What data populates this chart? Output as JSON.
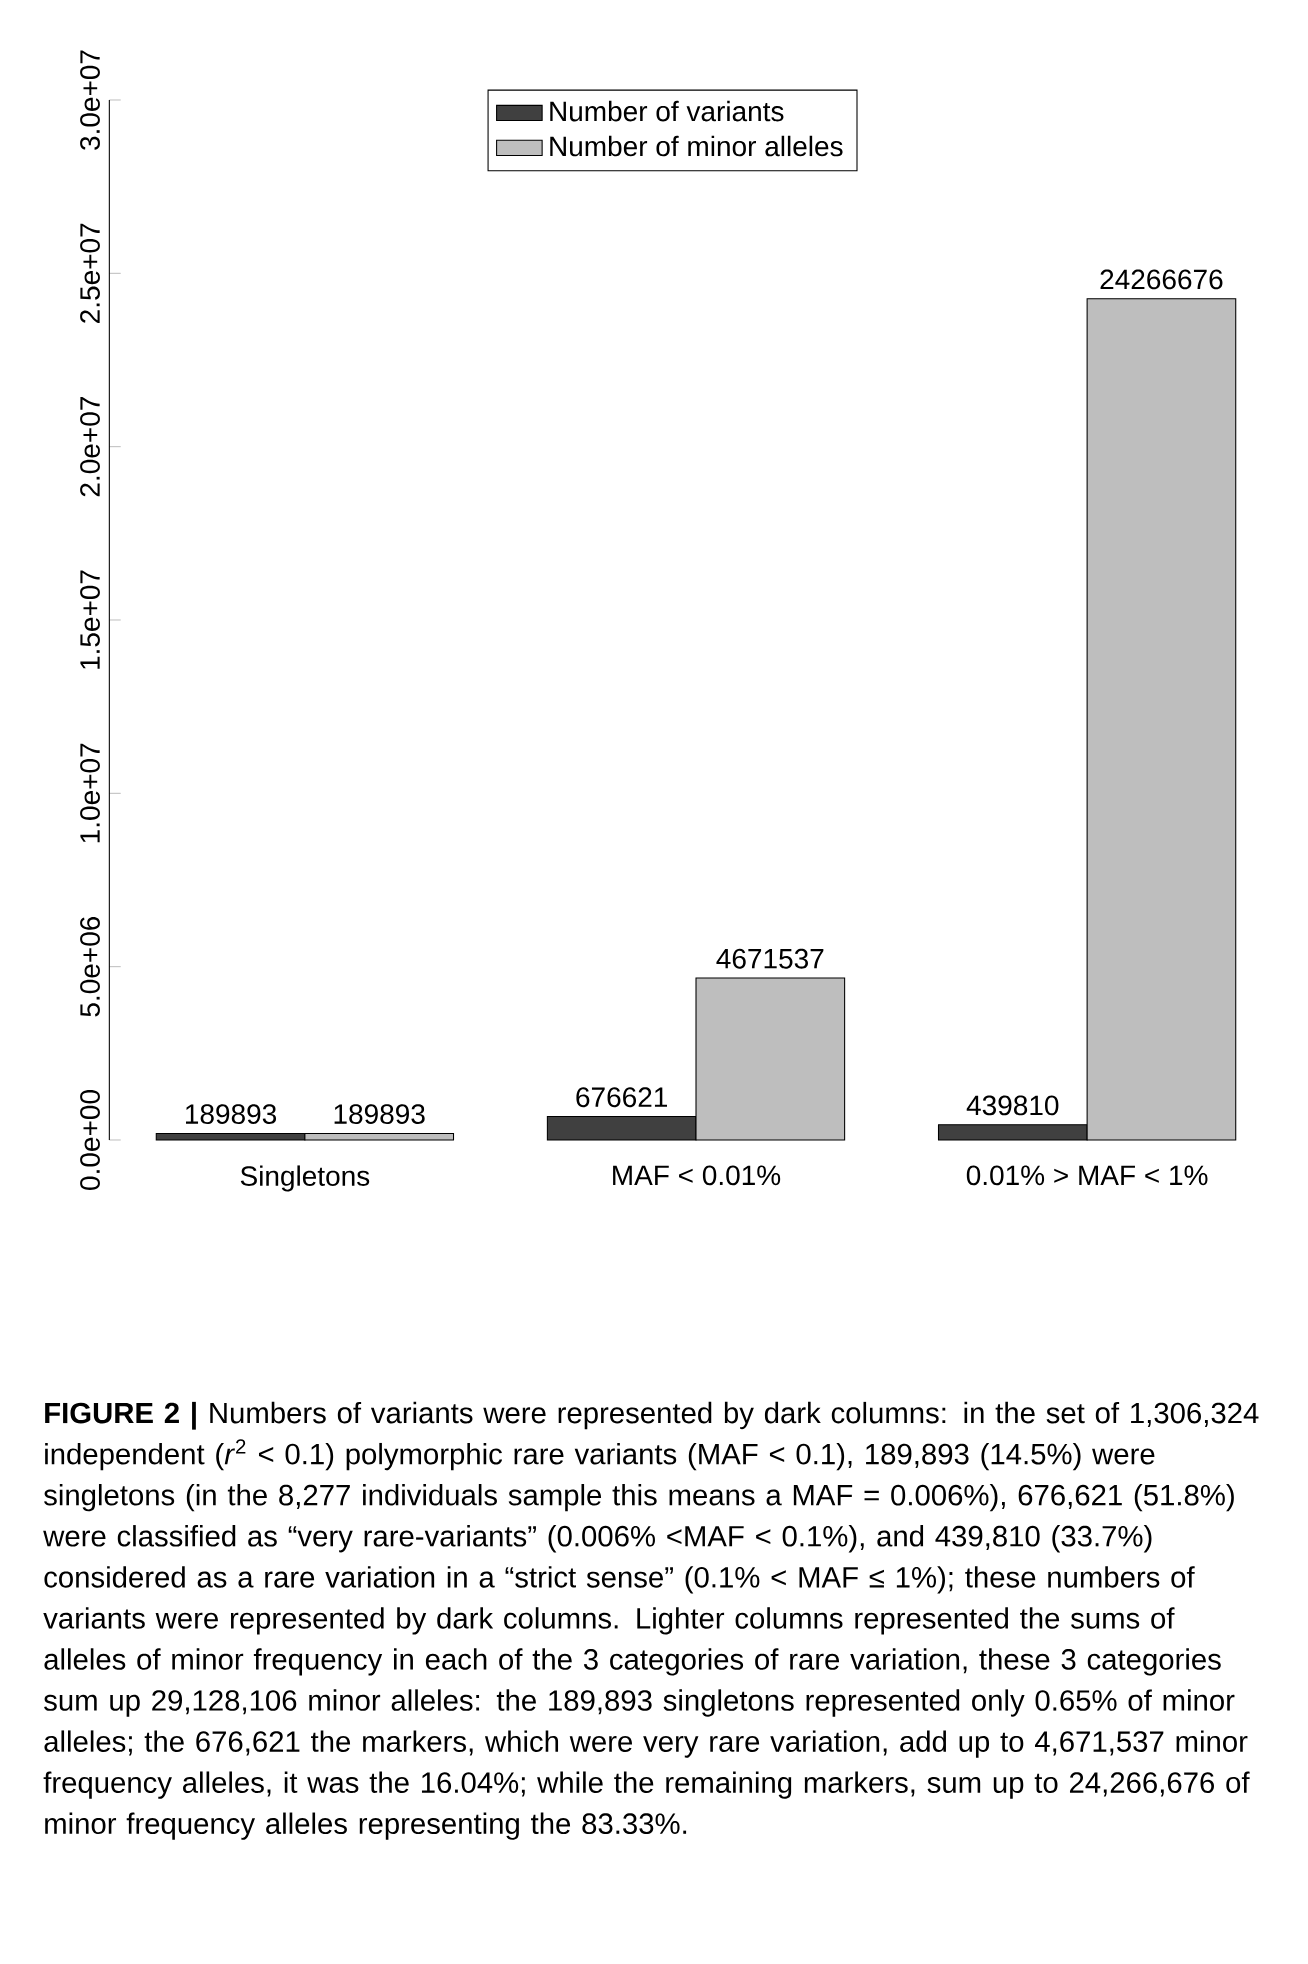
{
  "chart_data": {
    "type": "bar",
    "categories": [
      "Singletons",
      "MAF < 0.01%",
      "0.01% > MAF < 1%"
    ],
    "series": [
      {
        "name": "Number of variants",
        "color": "#404040",
        "values": [
          189893,
          676621,
          439810
        ]
      },
      {
        "name": "Number of minor alleles",
        "color": "#bebebe",
        "values": [
          189893,
          4671537,
          24266676
        ]
      }
    ],
    "ylim": [
      0,
      30000000
    ],
    "yticks": [
      {
        "value": 0,
        "label": "0.0e+00"
      },
      {
        "value": 5000000,
        "label": "5.0e+06"
      },
      {
        "value": 10000000,
        "label": "1.0e+07"
      },
      {
        "value": 15000000,
        "label": "1.5e+07"
      },
      {
        "value": 20000000,
        "label": "2.0e+07"
      },
      {
        "value": 25000000,
        "label": "2.5e+07"
      },
      {
        "value": 30000000,
        "label": "3.0e+07"
      }
    ],
    "data_labels": true,
    "legend": "top",
    "annotations": [
      "**FIGURE 2 |** Numbers of variants were represented by dark columns: in the set of 1,306,324 independent (*r*$^{2}$ < 0.1) polymorphic rare variants (MAF < 0.1), 189,893 (14.5%) were singletons (in the 8,277 individuals sample this means a MAF = 0.006%), 676,621 (51.8%) were classified as “very rare-variants” (0.006% <MAF < 0.1%), and 439,810 (33.7%) considered as a rare variation in a “strict sense” (0.1% < MAF ≤ 1%); these numbers of variants were represented by dark columns. Lighter columns represented the sums of alleles of minor frequency in each of the 3 categories of rare variation, these 3 categories sum up 29,128,106 minor alleles: the 189,893 singletons represented only 0.65% of minor alleles; the 676,621 the markers, which were very rare variation, add up to 4,671,537 minor frequency alleles, it was the 16.04%; while the remaining markers, sum up to 24,266,676 of minor frequency alleles representing the 83.33%."
    ]
  }
}
